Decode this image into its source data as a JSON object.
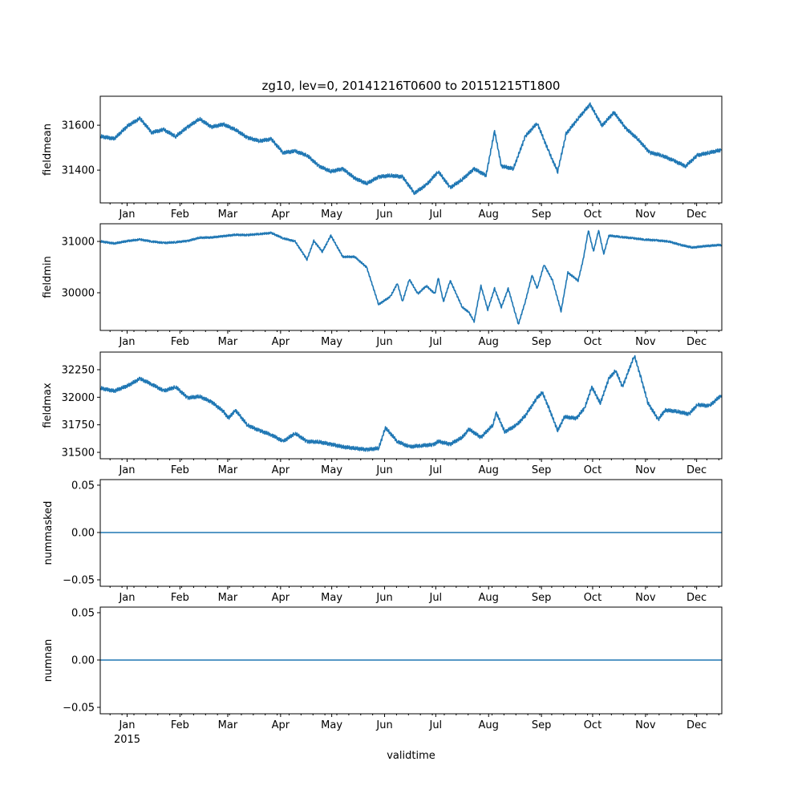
{
  "chart_data": {
    "type": "line",
    "title": "zg10, lev=0, 20141216T0600 to 20151215T1800",
    "xlabel": "validtime",
    "x_range": [
      "2014-12-16T06:00",
      "2015-12-15T18:00"
    ],
    "x_tick_labels": [
      "Jan",
      "Feb",
      "Mar",
      "Apr",
      "May",
      "Jun",
      "Jul",
      "Aug",
      "Sep",
      "Oct",
      "Nov",
      "Dec"
    ],
    "x_tick_dates": [
      "2015-01-01",
      "2015-02-01",
      "2015-03-01",
      "2015-04-01",
      "2015-05-01",
      "2015-06-01",
      "2015-07-01",
      "2015-08-01",
      "2015-09-01",
      "2015-10-01",
      "2015-11-01",
      "2015-12-01"
    ],
    "year_label": "2015",
    "line_color": "#1f77b4",
    "panels": [
      {
        "ylabel": "fieldmean",
        "ylim": [
          31254,
          31729
        ],
        "yticks": [
          31400,
          31600
        ],
        "ytick_labels": [
          "31400",
          "31600"
        ],
        "series": [
          [
            "2014-12-16",
            31550
          ],
          [
            "2014-12-24",
            31540
          ],
          [
            "2015-01-01",
            31598
          ],
          [
            "2015-01-08",
            31630
          ],
          [
            "2015-01-15",
            31568
          ],
          [
            "2015-01-22",
            31580
          ],
          [
            "2015-01-29",
            31550
          ],
          [
            "2015-02-05",
            31592
          ],
          [
            "2015-02-12",
            31628
          ],
          [
            "2015-02-19",
            31592
          ],
          [
            "2015-02-26",
            31604
          ],
          [
            "2015-03-05",
            31580
          ],
          [
            "2015-03-12",
            31545
          ],
          [
            "2015-03-19",
            31530
          ],
          [
            "2015-03-26",
            31538
          ],
          [
            "2015-04-02",
            31478
          ],
          [
            "2015-04-09",
            31484
          ],
          [
            "2015-04-16",
            31466
          ],
          [
            "2015-04-23",
            31418
          ],
          [
            "2015-04-30",
            31394
          ],
          [
            "2015-05-07",
            31406
          ],
          [
            "2015-05-14",
            31364
          ],
          [
            "2015-05-21",
            31340
          ],
          [
            "2015-05-28",
            31370
          ],
          [
            "2015-06-04",
            31376
          ],
          [
            "2015-06-11",
            31370
          ],
          [
            "2015-06-18",
            31298
          ],
          [
            "2015-06-25",
            31334
          ],
          [
            "2015-07-02",
            31394
          ],
          [
            "2015-07-09",
            31322
          ],
          [
            "2015-07-16",
            31358
          ],
          [
            "2015-07-23",
            31406
          ],
          [
            "2015-07-30",
            31376
          ],
          [
            "2015-08-04",
            31574
          ],
          [
            "2015-08-08",
            31418
          ],
          [
            "2015-08-15",
            31406
          ],
          [
            "2015-08-22",
            31550
          ],
          [
            "2015-08-29",
            31610
          ],
          [
            "2015-09-05",
            31478
          ],
          [
            "2015-09-10",
            31394
          ],
          [
            "2015-09-15",
            31562
          ],
          [
            "2015-09-22",
            31630
          ],
          [
            "2015-09-29",
            31693
          ],
          [
            "2015-10-06",
            31598
          ],
          [
            "2015-10-13",
            31657
          ],
          [
            "2015-10-20",
            31586
          ],
          [
            "2015-10-27",
            31538
          ],
          [
            "2015-11-03",
            31478
          ],
          [
            "2015-11-10",
            31466
          ],
          [
            "2015-11-17",
            31442
          ],
          [
            "2015-11-24",
            31418
          ],
          [
            "2015-12-01",
            31466
          ],
          [
            "2015-12-08",
            31478
          ],
          [
            "2015-12-15",
            31490
          ]
        ]
      },
      {
        "ylabel": "fieldmin",
        "ylim": [
          29266,
          31344
        ],
        "yticks": [
          30000,
          31000
        ],
        "ytick_labels": [
          "30000",
          "31000"
        ],
        "series": [
          [
            "2014-12-16",
            31000
          ],
          [
            "2014-12-24",
            30960
          ],
          [
            "2015-01-01",
            31010
          ],
          [
            "2015-01-08",
            31036
          ],
          [
            "2015-01-15",
            31000
          ],
          [
            "2015-01-22",
            30970
          ],
          [
            "2015-01-29",
            30985
          ],
          [
            "2015-02-05",
            31010
          ],
          [
            "2015-02-12",
            31072
          ],
          [
            "2015-02-19",
            31077
          ],
          [
            "2015-02-26",
            31103
          ],
          [
            "2015-03-05",
            31129
          ],
          [
            "2015-03-12",
            31124
          ],
          [
            "2015-03-19",
            31144
          ],
          [
            "2015-03-26",
            31165
          ],
          [
            "2015-04-02",
            31062
          ],
          [
            "2015-04-09",
            31000
          ],
          [
            "2015-04-16",
            30650
          ],
          [
            "2015-04-20",
            31010
          ],
          [
            "2015-04-25",
            30800
          ],
          [
            "2015-04-30",
            31113
          ],
          [
            "2015-05-07",
            30700
          ],
          [
            "2015-05-14",
            30700
          ],
          [
            "2015-05-21",
            30495
          ],
          [
            "2015-05-28",
            29773
          ],
          [
            "2015-06-04",
            29928
          ],
          [
            "2015-06-08",
            30185
          ],
          [
            "2015-06-11",
            29825
          ],
          [
            "2015-06-15",
            30263
          ],
          [
            "2015-06-20",
            29979
          ],
          [
            "2015-06-25",
            30134
          ],
          [
            "2015-06-30",
            29979
          ],
          [
            "2015-07-02",
            30289
          ],
          [
            "2015-07-05",
            29825
          ],
          [
            "2015-07-09",
            30237
          ],
          [
            "2015-07-16",
            29721
          ],
          [
            "2015-07-20",
            29618
          ],
          [
            "2015-07-23",
            29438
          ],
          [
            "2015-07-27",
            30134
          ],
          [
            "2015-07-31",
            29670
          ],
          [
            "2015-08-04",
            30082
          ],
          [
            "2015-08-08",
            29721
          ],
          [
            "2015-08-12",
            30082
          ],
          [
            "2015-08-16",
            29618
          ],
          [
            "2015-08-18",
            29386
          ],
          [
            "2015-08-22",
            29825
          ],
          [
            "2015-08-26",
            30340
          ],
          [
            "2015-08-29",
            30082
          ],
          [
            "2015-09-02",
            30546
          ],
          [
            "2015-09-07",
            30237
          ],
          [
            "2015-09-12",
            29644
          ],
          [
            "2015-09-16",
            30392
          ],
          [
            "2015-09-22",
            30237
          ],
          [
            "2015-09-25",
            30650
          ],
          [
            "2015-09-28",
            31216
          ],
          [
            "2015-10-01",
            30804
          ],
          [
            "2015-10-04",
            31216
          ],
          [
            "2015-10-07",
            30753
          ],
          [
            "2015-10-10",
            31113
          ],
          [
            "2015-10-17",
            31088
          ],
          [
            "2015-10-24",
            31062
          ],
          [
            "2015-10-31",
            31036
          ],
          [
            "2015-11-07",
            31020
          ],
          [
            "2015-11-14",
            31000
          ],
          [
            "2015-11-21",
            30933
          ],
          [
            "2015-11-28",
            30881
          ],
          [
            "2015-12-05",
            30907
          ],
          [
            "2015-12-15",
            30933
          ]
        ]
      },
      {
        "ylabel": "fieldmax",
        "ylim": [
          31442,
          32410
        ],
        "yticks": [
          31500,
          31750,
          32000,
          32250
        ],
        "ytick_labels": [
          "31500",
          "31750",
          "32000",
          "32250"
        ],
        "series": [
          [
            "2014-12-16",
            32082
          ],
          [
            "2014-12-24",
            32057
          ],
          [
            "2015-01-01",
            32106
          ],
          [
            "2015-01-08",
            32168
          ],
          [
            "2015-01-15",
            32119
          ],
          [
            "2015-01-22",
            32057
          ],
          [
            "2015-01-29",
            32094
          ],
          [
            "2015-02-05",
            31995
          ],
          [
            "2015-02-12",
            32007
          ],
          [
            "2015-02-19",
            31958
          ],
          [
            "2015-02-26",
            31871
          ],
          [
            "2015-03-01",
            31809
          ],
          [
            "2015-03-05",
            31884
          ],
          [
            "2015-03-12",
            31748
          ],
          [
            "2015-03-19",
            31698
          ],
          [
            "2015-03-26",
            31661
          ],
          [
            "2015-04-02",
            31599
          ],
          [
            "2015-04-09",
            31673
          ],
          [
            "2015-04-16",
            31599
          ],
          [
            "2015-04-23",
            31594
          ],
          [
            "2015-04-30",
            31574
          ],
          [
            "2015-05-07",
            31550
          ],
          [
            "2015-05-14",
            31537
          ],
          [
            "2015-05-21",
            31525
          ],
          [
            "2015-05-28",
            31537
          ],
          [
            "2015-06-01",
            31723
          ],
          [
            "2015-06-08",
            31599
          ],
          [
            "2015-06-15",
            31550
          ],
          [
            "2015-06-22",
            31562
          ],
          [
            "2015-06-29",
            31569
          ],
          [
            "2015-07-02",
            31599
          ],
          [
            "2015-07-09",
            31574
          ],
          [
            "2015-07-16",
            31636
          ],
          [
            "2015-07-20",
            31710
          ],
          [
            "2015-07-27",
            31636
          ],
          [
            "2015-08-03",
            31748
          ],
          [
            "2015-08-05",
            31859
          ],
          [
            "2015-08-10",
            31686
          ],
          [
            "2015-08-17",
            31748
          ],
          [
            "2015-08-22",
            31834
          ],
          [
            "2015-08-29",
            31995
          ],
          [
            "2015-09-01",
            32044
          ],
          [
            "2015-09-05",
            31896
          ],
          [
            "2015-09-10",
            31698
          ],
          [
            "2015-09-14",
            31822
          ],
          [
            "2015-09-21",
            31809
          ],
          [
            "2015-09-26",
            31908
          ],
          [
            "2015-09-30",
            32094
          ],
          [
            "2015-10-05",
            31946
          ],
          [
            "2015-10-10",
            32168
          ],
          [
            "2015-10-14",
            32243
          ],
          [
            "2015-10-18",
            32094
          ],
          [
            "2015-10-25",
            32379
          ],
          [
            "2015-10-29",
            32168
          ],
          [
            "2015-11-02",
            31946
          ],
          [
            "2015-11-08",
            31797
          ],
          [
            "2015-11-12",
            31884
          ],
          [
            "2015-11-19",
            31871
          ],
          [
            "2015-11-26",
            31847
          ],
          [
            "2015-12-01",
            31933
          ],
          [
            "2015-12-08",
            31921
          ],
          [
            "2015-12-15",
            32020
          ]
        ]
      },
      {
        "ylabel": "nummasked",
        "ylim": [
          -0.0568,
          0.0559
        ],
        "yticks": [
          -0.05,
          0,
          0.05
        ],
        "ytick_labels": [
          "−0.05",
          "0.00",
          "0.05"
        ],
        "series": [
          [
            "2014-12-16T06:00",
            0
          ],
          [
            "2015-12-15T18:00",
            0
          ]
        ]
      },
      {
        "ylabel": "numnan",
        "ylim": [
          -0.0568,
          0.0559
        ],
        "yticks": [
          -0.05,
          0,
          0.05
        ],
        "ytick_labels": [
          "−0.05",
          "0.00",
          "0.05"
        ],
        "series": [
          [
            "2014-12-16T06:00",
            0
          ],
          [
            "2015-12-15T18:00",
            0
          ]
        ]
      }
    ]
  }
}
